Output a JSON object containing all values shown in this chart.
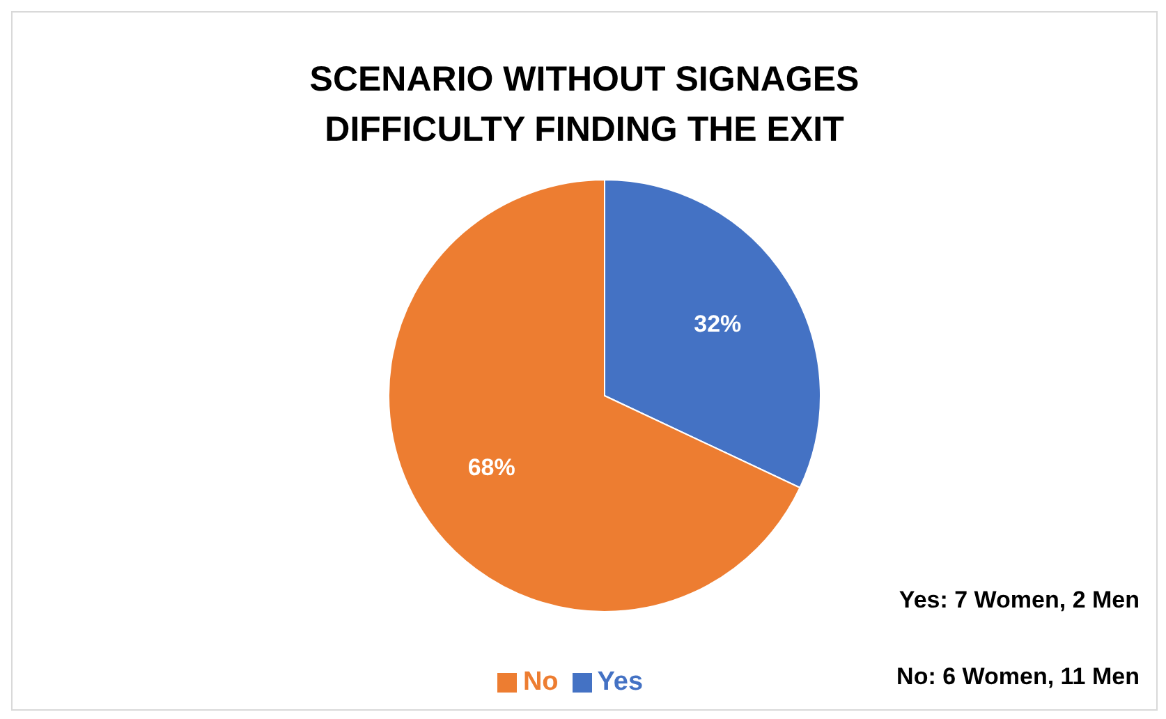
{
  "chart_data": {
    "type": "pie",
    "title": "SCENARIO WITHOUT SIGNAGES\nDIFFICULTY FINDING THE EXIT",
    "categories": [
      "Yes",
      "No"
    ],
    "values": [
      32,
      68
    ],
    "value_labels": [
      "32%",
      "68%"
    ],
    "colors": [
      "#4472c4",
      "#ed7d31"
    ],
    "legend": "bottom",
    "annotations": [
      "Yes: 7 Women, 2 Men",
      "No: 6 Women, 11 Men"
    ]
  }
}
